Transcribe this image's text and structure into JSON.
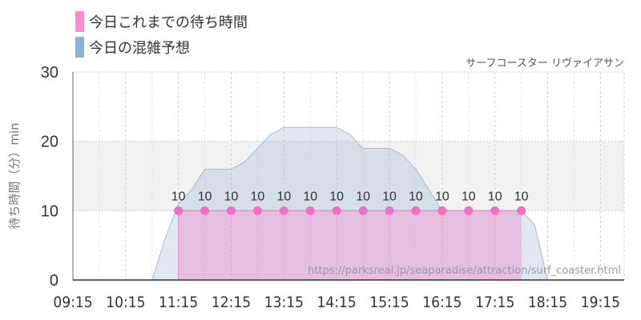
{
  "legend": [
    {
      "label": "今日これまでの待ち時間",
      "color": "#f78fcb"
    },
    {
      "label": "今日の混雑予想",
      "color": "#8fb0cf"
    }
  ],
  "chart_data": {
    "type": "area",
    "title": "サーフコースター リヴァイアサン",
    "ylabel": "待ち時間（分）min",
    "source_text": "https://parksreal.jp/seaparadise/attraction/surf_coaster.html",
    "ylim": [
      0,
      30
    ],
    "yticks": [
      "0",
      "10",
      "20",
      "30"
    ],
    "xticks": [
      "09:15",
      "10:15",
      "11:15",
      "12:15",
      "13:15",
      "14:15",
      "15:15",
      "16:15",
      "17:15",
      "18:15",
      "19:15"
    ],
    "grid": true,
    "highlight_band": [
      10,
      20
    ],
    "series": [
      {
        "name": "今日これまでの待ち時間",
        "color": "#f78fcb",
        "x": [
          "11:15",
          "11:45",
          "12:15",
          "12:45",
          "13:15",
          "13:45",
          "14:15",
          "14:45",
          "15:15",
          "15:45",
          "16:15",
          "16:45",
          "17:15",
          "17:45"
        ],
        "values": [
          10,
          10,
          10,
          10,
          10,
          10,
          10,
          10,
          10,
          10,
          10,
          10,
          10,
          10
        ]
      },
      {
        "name": "今日の混雑予想",
        "color": "#8fb0cf",
        "x": [
          "09:15",
          "10:15",
          "10:45",
          "11:00",
          "11:15",
          "11:30",
          "11:45",
          "12:00",
          "12:15",
          "12:30",
          "12:45",
          "13:00",
          "13:15",
          "13:30",
          "13:45",
          "14:00",
          "14:15",
          "14:30",
          "14:45",
          "15:00",
          "15:15",
          "15:30",
          "15:45",
          "16:00",
          "16:15",
          "16:30",
          "16:45",
          "17:00",
          "17:15",
          "17:30",
          "17:45",
          "18:00",
          "18:15",
          "18:45",
          "19:15",
          "19:30"
        ],
        "values": [
          0,
          0,
          0,
          6,
          11,
          13,
          16,
          16,
          16,
          17,
          19,
          21,
          22,
          22,
          22,
          22,
          22,
          21,
          19,
          19,
          19,
          18,
          16,
          13,
          10,
          10,
          10,
          10,
          10,
          10,
          10,
          8,
          0,
          0,
          0,
          0
        ]
      }
    ]
  }
}
